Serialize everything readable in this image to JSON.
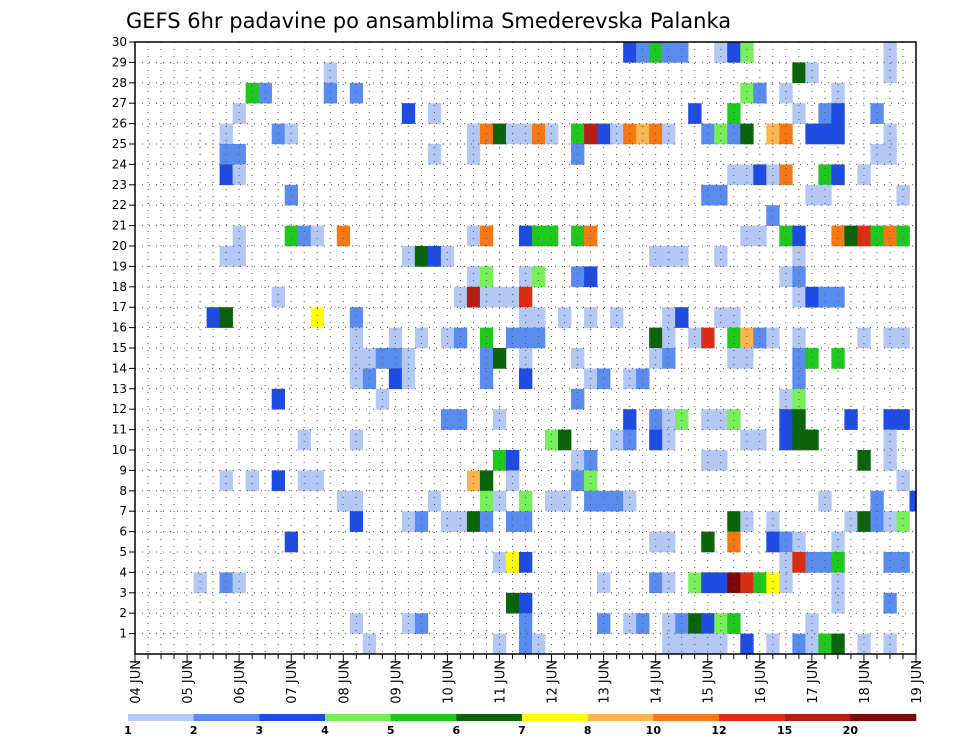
{
  "chart_data": {
    "type": "heatmap",
    "title": "GEFS 6hr padavine po ansamblima Smederevska Palanka",
    "xlabel": "",
    "ylabel": "",
    "x_tick_labels": [
      "04 JUN",
      "05 JUN",
      "06 JUN",
      "07 JUN",
      "08 JUN",
      "09 JUN",
      "10 JUN",
      "11 JUN",
      "12 JUN",
      "13 JUN",
      "14 JUN",
      "15 JUN",
      "16 JUN",
      "17 JUN",
      "18 JUN",
      "19 JUN"
    ],
    "y_tick_labels": [
      "1",
      "2",
      "3",
      "4",
      "5",
      "6",
      "7",
      "8",
      "9",
      "10",
      "11",
      "12",
      "13",
      "14",
      "15",
      "16",
      "17",
      "18",
      "19",
      "20",
      "21",
      "22",
      "23",
      "24",
      "25",
      "26",
      "27",
      "28",
      "29",
      "30"
    ],
    "ylim": [
      0,
      30
    ],
    "steps_per_day": 4,
    "num_steps": 60,
    "grid": true,
    "colorbar": {
      "position": "bottom",
      "tick_labels": [
        "1",
        "2",
        "3",
        "4",
        "5",
        "6",
        "7",
        "8",
        "10",
        "12",
        "15",
        "20"
      ],
      "colors": [
        "#b4c8f5",
        "#5a8cf0",
        "#1e4be1",
        "#78ee5a",
        "#1ec81e",
        "#0a640a",
        "#ffff00",
        "#fab450",
        "#f57814",
        "#dc2d14",
        "#b41e14",
        "#7d0a0a"
      ]
    },
    "cells": [
      [
        30,
        13,
        1
      ],
      [
        30,
        15,
        5
      ],
      [
        30,
        16,
        5
      ],
      [
        30,
        46,
        1
      ],
      [
        30,
        47,
        10
      ],
      [
        30,
        48,
        2
      ],
      [
        30,
        50,
        6
      ],
      [
        30,
        51,
        4
      ],
      [
        30,
        52,
        5
      ],
      [
        30,
        54,
        1
      ],
      [
        30,
        55,
        1
      ],
      [
        29,
        38,
        3
      ],
      [
        29,
        39,
        2
      ],
      [
        29,
        40,
        5
      ],
      [
        29,
        41,
        2
      ],
      [
        29,
        42,
        2
      ],
      [
        29,
        45,
        1
      ],
      [
        29,
        46,
        3
      ],
      [
        29,
        47,
        4
      ],
      [
        29,
        58,
        1
      ],
      [
        28,
        15,
        1
      ],
      [
        28,
        51,
        6
      ],
      [
        28,
        52,
        1
      ],
      [
        28,
        58,
        1
      ],
      [
        27,
        9,
        5
      ],
      [
        27,
        10,
        2
      ],
      [
        27,
        15,
        2
      ],
      [
        27,
        17,
        2
      ],
      [
        27,
        47,
        4
      ],
      [
        27,
        48,
        2
      ],
      [
        27,
        50,
        1
      ],
      [
        27,
        54,
        1
      ],
      [
        26,
        8,
        1
      ],
      [
        26,
        21,
        3
      ],
      [
        26,
        23,
        1
      ],
      [
        26,
        43,
        3
      ],
      [
        26,
        46,
        5
      ],
      [
        26,
        51,
        1
      ],
      [
        26,
        53,
        2
      ],
      [
        26,
        54,
        3
      ],
      [
        26,
        57,
        2
      ],
      [
        25,
        7,
        1
      ],
      [
        25,
        11,
        2
      ],
      [
        25,
        12,
        1
      ],
      [
        25,
        26,
        1
      ],
      [
        25,
        27,
        9
      ],
      [
        25,
        28,
        6
      ],
      [
        25,
        29,
        1
      ],
      [
        25,
        30,
        1
      ],
      [
        25,
        31,
        9
      ],
      [
        25,
        32,
        1
      ],
      [
        25,
        34,
        5
      ],
      [
        25,
        35,
        11
      ],
      [
        25,
        36,
        3
      ],
      [
        25,
        37,
        1
      ],
      [
        25,
        38,
        9
      ],
      [
        25,
        39,
        8
      ],
      [
        25,
        40,
        9
      ],
      [
        25,
        41,
        1
      ],
      [
        25,
        44,
        2
      ],
      [
        25,
        45,
        4
      ],
      [
        25,
        46,
        2
      ],
      [
        25,
        47,
        6
      ],
      [
        25,
        49,
        8
      ],
      [
        25,
        50,
        9
      ],
      [
        25,
        52,
        3
      ],
      [
        25,
        53,
        3
      ],
      [
        25,
        54,
        3
      ],
      [
        25,
        58,
        1
      ],
      [
        24,
        7,
        2
      ],
      [
        24,
        8,
        2
      ],
      [
        24,
        23,
        1
      ],
      [
        24,
        26,
        1
      ],
      [
        24,
        34,
        2
      ],
      [
        24,
        57,
        1
      ],
      [
        24,
        58,
        1
      ],
      [
        23,
        7,
        3
      ],
      [
        23,
        8,
        1
      ],
      [
        23,
        46,
        1
      ],
      [
        23,
        47,
        1
      ],
      [
        23,
        48,
        3
      ],
      [
        23,
        49,
        1
      ],
      [
        23,
        50,
        9
      ],
      [
        23,
        53,
        5
      ],
      [
        23,
        54,
        3
      ],
      [
        23,
        56,
        1
      ],
      [
        22,
        12,
        2
      ],
      [
        22,
        44,
        2
      ],
      [
        22,
        45,
        2
      ],
      [
        22,
        52,
        1
      ],
      [
        22,
        53,
        1
      ],
      [
        22,
        59,
        1
      ],
      [
        21,
        49,
        2
      ],
      [
        20,
        8,
        1
      ],
      [
        20,
        12,
        5
      ],
      [
        20,
        13,
        2
      ],
      [
        20,
        14,
        1
      ],
      [
        20,
        16,
        9
      ],
      [
        20,
        26,
        1
      ],
      [
        20,
        27,
        9
      ],
      [
        20,
        30,
        3
      ],
      [
        20,
        31,
        5
      ],
      [
        20,
        32,
        5
      ],
      [
        20,
        34,
        5
      ],
      [
        20,
        35,
        9
      ],
      [
        20,
        47,
        1
      ],
      [
        20,
        48,
        1
      ],
      [
        20,
        50,
        5
      ],
      [
        20,
        51,
        3
      ],
      [
        20,
        54,
        9
      ],
      [
        20,
        55,
        6
      ],
      [
        20,
        56,
        10
      ],
      [
        20,
        57,
        5
      ],
      [
        20,
        58,
        9
      ],
      [
        20,
        59,
        5
      ],
      [
        19,
        7,
        1
      ],
      [
        19,
        8,
        1
      ],
      [
        19,
        21,
        1
      ],
      [
        19,
        22,
        6
      ],
      [
        19,
        23,
        3
      ],
      [
        19,
        24,
        1
      ],
      [
        19,
        40,
        1
      ],
      [
        19,
        41,
        1
      ],
      [
        19,
        42,
        1
      ],
      [
        19,
        45,
        1
      ],
      [
        19,
        51,
        1
      ],
      [
        18,
        26,
        1
      ],
      [
        18,
        27,
        4
      ],
      [
        18,
        30,
        1
      ],
      [
        18,
        31,
        4
      ],
      [
        18,
        34,
        2
      ],
      [
        18,
        35,
        3
      ],
      [
        18,
        50,
        1
      ],
      [
        18,
        51,
        2
      ],
      [
        17,
        11,
        1
      ],
      [
        17,
        25,
        1
      ],
      [
        17,
        26,
        11
      ],
      [
        17,
        27,
        1
      ],
      [
        17,
        28,
        1
      ],
      [
        17,
        29,
        1
      ],
      [
        17,
        30,
        10
      ],
      [
        17,
        51,
        1
      ],
      [
        17,
        52,
        3
      ],
      [
        17,
        53,
        2
      ],
      [
        17,
        54,
        2
      ],
      [
        16,
        6,
        3
      ],
      [
        16,
        7,
        6
      ],
      [
        16,
        14,
        7
      ],
      [
        16,
        17,
        2
      ],
      [
        16,
        30,
        1
      ],
      [
        16,
        31,
        1
      ],
      [
        16,
        33,
        1
      ],
      [
        16,
        35,
        1
      ],
      [
        16,
        37,
        1
      ],
      [
        16,
        41,
        1
      ],
      [
        16,
        42,
        3
      ],
      [
        16,
        45,
        1
      ],
      [
        16,
        46,
        1
      ],
      [
        15,
        17,
        1
      ],
      [
        15,
        20,
        1
      ],
      [
        15,
        22,
        1
      ],
      [
        15,
        24,
        1
      ],
      [
        15,
        25,
        2
      ],
      [
        15,
        27,
        5
      ],
      [
        15,
        29,
        2
      ],
      [
        15,
        30,
        2
      ],
      [
        15,
        31,
        2
      ],
      [
        15,
        40,
        6
      ],
      [
        15,
        41,
        1
      ],
      [
        15,
        43,
        1
      ],
      [
        15,
        44,
        10
      ],
      [
        15,
        46,
        5
      ],
      [
        15,
        47,
        8
      ],
      [
        15,
        48,
        2
      ],
      [
        15,
        49,
        1
      ],
      [
        15,
        51,
        1
      ],
      [
        15,
        56,
        1
      ],
      [
        15,
        58,
        1
      ],
      [
        15,
        59,
        1
      ],
      [
        14,
        17,
        1
      ],
      [
        14,
        18,
        1
      ],
      [
        14,
        19,
        2
      ],
      [
        14,
        20,
        2
      ],
      [
        14,
        21,
        1
      ],
      [
        14,
        27,
        2
      ],
      [
        14,
        28,
        6
      ],
      [
        14,
        30,
        1
      ],
      [
        14,
        34,
        1
      ],
      [
        14,
        40,
        1
      ],
      [
        14,
        41,
        2
      ],
      [
        14,
        46,
        1
      ],
      [
        14,
        47,
        1
      ],
      [
        14,
        51,
        2
      ],
      [
        14,
        52,
        5
      ],
      [
        14,
        54,
        5
      ],
      [
        13,
        17,
        1
      ],
      [
        13,
        18,
        2
      ],
      [
        13,
        20,
        3
      ],
      [
        13,
        21,
        1
      ],
      [
        13,
        27,
        2
      ],
      [
        13,
        30,
        3
      ],
      [
        13,
        35,
        1
      ],
      [
        13,
        36,
        2
      ],
      [
        13,
        38,
        1
      ],
      [
        13,
        39,
        2
      ],
      [
        13,
        51,
        2
      ],
      [
        12,
        11,
        3
      ],
      [
        12,
        19,
        1
      ],
      [
        12,
        34,
        2
      ],
      [
        12,
        50,
        1
      ],
      [
        12,
        51,
        4
      ],
      [
        11,
        24,
        2
      ],
      [
        11,
        25,
        2
      ],
      [
        11,
        28,
        1
      ],
      [
        11,
        38,
        3
      ],
      [
        11,
        40,
        2
      ],
      [
        11,
        41,
        1
      ],
      [
        11,
        42,
        4
      ],
      [
        11,
        44,
        1
      ],
      [
        11,
        45,
        1
      ],
      [
        11,
        46,
        4
      ],
      [
        11,
        50,
        3
      ],
      [
        11,
        51,
        6
      ],
      [
        11,
        55,
        3
      ],
      [
        11,
        58,
        3
      ],
      [
        11,
        59,
        3
      ],
      [
        10,
        13,
        1
      ],
      [
        10,
        17,
        1
      ],
      [
        10,
        32,
        4
      ],
      [
        10,
        33,
        6
      ],
      [
        10,
        37,
        1
      ],
      [
        10,
        38,
        2
      ],
      [
        10,
        40,
        3
      ],
      [
        10,
        41,
        1
      ],
      [
        10,
        47,
        1
      ],
      [
        10,
        48,
        1
      ],
      [
        10,
        50,
        3
      ],
      [
        10,
        51,
        6
      ],
      [
        10,
        52,
        6
      ],
      [
        10,
        58,
        1
      ],
      [
        9,
        28,
        5
      ],
      [
        9,
        29,
        3
      ],
      [
        9,
        34,
        1
      ],
      [
        9,
        35,
        2
      ],
      [
        9,
        44,
        1
      ],
      [
        9,
        45,
        1
      ],
      [
        9,
        56,
        6
      ],
      [
        9,
        58,
        1
      ],
      [
        8,
        7,
        1
      ],
      [
        8,
        9,
        1
      ],
      [
        8,
        11,
        3
      ],
      [
        8,
        13,
        1
      ],
      [
        8,
        14,
        1
      ],
      [
        8,
        26,
        8
      ],
      [
        8,
        27,
        6
      ],
      [
        8,
        29,
        1
      ],
      [
        8,
        34,
        2
      ],
      [
        8,
        35,
        4
      ],
      [
        8,
        59,
        1
      ],
      [
        7,
        16,
        1
      ],
      [
        7,
        17,
        1
      ],
      [
        7,
        23,
        1
      ],
      [
        7,
        27,
        4
      ],
      [
        7,
        28,
        1
      ],
      [
        7,
        30,
        4
      ],
      [
        7,
        32,
        1
      ],
      [
        7,
        33,
        1
      ],
      [
        7,
        35,
        2
      ],
      [
        7,
        36,
        2
      ],
      [
        7,
        37,
        2
      ],
      [
        7,
        38,
        1
      ],
      [
        7,
        53,
        1
      ],
      [
        7,
        57,
        2
      ],
      [
        7,
        60,
        3
      ],
      [
        6,
        17,
        3
      ],
      [
        6,
        21,
        1
      ],
      [
        6,
        22,
        2
      ],
      [
        6,
        24,
        1
      ],
      [
        6,
        25,
        1
      ],
      [
        6,
        26,
        6
      ],
      [
        6,
        27,
        2
      ],
      [
        6,
        29,
        2
      ],
      [
        6,
        30,
        2
      ],
      [
        6,
        46,
        6
      ],
      [
        6,
        47,
        1
      ],
      [
        6,
        49,
        1
      ],
      [
        6,
        55,
        1
      ],
      [
        6,
        56,
        6
      ],
      [
        6,
        57,
        2
      ],
      [
        6,
        58,
        1
      ],
      [
        6,
        59,
        4
      ],
      [
        5,
        12,
        3
      ],
      [
        5,
        40,
        1
      ],
      [
        5,
        41,
        1
      ],
      [
        5,
        44,
        6
      ],
      [
        5,
        46,
        9
      ],
      [
        5,
        49,
        3
      ],
      [
        5,
        50,
        2
      ],
      [
        5,
        51,
        1
      ],
      [
        5,
        54,
        1
      ],
      [
        4,
        28,
        1
      ],
      [
        4,
        29,
        7
      ],
      [
        4,
        30,
        3
      ],
      [
        4,
        50,
        1
      ],
      [
        4,
        51,
        10
      ],
      [
        4,
        52,
        2
      ],
      [
        4,
        53,
        2
      ],
      [
        4,
        54,
        5
      ],
      [
        4,
        58,
        2
      ],
      [
        4,
        59,
        2
      ],
      [
        3,
        5,
        1
      ],
      [
        3,
        7,
        2
      ],
      [
        3,
        8,
        1
      ],
      [
        3,
        36,
        1
      ],
      [
        3,
        40,
        2
      ],
      [
        3,
        41,
        1
      ],
      [
        3,
        43,
        4
      ],
      [
        3,
        44,
        3
      ],
      [
        3,
        45,
        3
      ],
      [
        3,
        46,
        12
      ],
      [
        3,
        47,
        10
      ],
      [
        3,
        48,
        5
      ],
      [
        3,
        49,
        7
      ],
      [
        3,
        50,
        1
      ],
      [
        3,
        54,
        1
      ],
      [
        2,
        29,
        6
      ],
      [
        2,
        30,
        3
      ],
      [
        2,
        54,
        1
      ],
      [
        2,
        58,
        2
      ],
      [
        1,
        17,
        1
      ],
      [
        1,
        21,
        1
      ],
      [
        1,
        22,
        2
      ],
      [
        1,
        30,
        2
      ],
      [
        1,
        36,
        2
      ],
      [
        1,
        38,
        1
      ],
      [
        1,
        39,
        2
      ],
      [
        1,
        41,
        1
      ],
      [
        1,
        42,
        2
      ],
      [
        1,
        43,
        6
      ],
      [
        1,
        44,
        3
      ],
      [
        1,
        45,
        4
      ],
      [
        1,
        46,
        5
      ],
      [
        1,
        52,
        1
      ],
      [
        0,
        18,
        1
      ],
      [
        0,
        28,
        1
      ],
      [
        0,
        30,
        2
      ],
      [
        0,
        31,
        1
      ],
      [
        0,
        41,
        1
      ],
      [
        0,
        42,
        1
      ],
      [
        0,
        43,
        1
      ],
      [
        0,
        44,
        1
      ],
      [
        0,
        45,
        1
      ],
      [
        0,
        47,
        3
      ],
      [
        0,
        49,
        1
      ],
      [
        0,
        51,
        2
      ],
      [
        0,
        52,
        1
      ],
      [
        0,
        53,
        5
      ],
      [
        0,
        54,
        6
      ],
      [
        0,
        56,
        1
      ],
      [
        0,
        58,
        1
      ]
    ]
  }
}
